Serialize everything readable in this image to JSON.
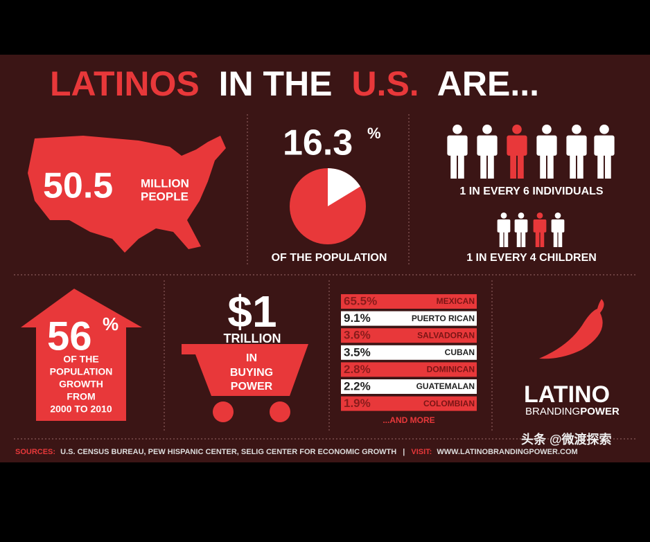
{
  "header": {
    "title_parts": [
      "LATINOS",
      "IN THE",
      "U.S.",
      "ARE..."
    ]
  },
  "population": {
    "number": "50.5",
    "unit_lines": [
      "MILLION",
      "PEOPLE"
    ]
  },
  "share": {
    "value": 16.3,
    "sign": "%",
    "caption": "OF THE POPULATION"
  },
  "ratios": [
    {
      "label": "1 IN EVERY 6 INDIVIDUALS"
    },
    {
      "label": "1 IN EVERY 4 CHILDREN"
    }
  ],
  "growth": {
    "number": "56",
    "sign": "%",
    "lines": [
      "OF THE",
      "POPULATION",
      "GROWTH",
      "FROM",
      "2000 TO 2010"
    ]
  },
  "buying_power": {
    "amount": "$1",
    "unit": "TRILLION",
    "lines": [
      "IN",
      "BUYING",
      "POWER"
    ]
  },
  "origins": {
    "rows": [
      [
        "65.5%",
        "MEXICAN"
      ],
      [
        "9.1%",
        "PUERTO RICAN"
      ],
      [
        "3.6%",
        "SALVADORAN"
      ],
      [
        "3.5%",
        "CUBAN"
      ],
      [
        "2.8%",
        "DOMINICAN"
      ],
      [
        "2.2%",
        "GUATEMALAN"
      ],
      [
        "1.9%",
        "COLOMBIAN"
      ]
    ],
    "more": "...AND MORE"
  },
  "brand": {
    "name": "LATINO",
    "tagline_parts": [
      "BRANDING",
      "POWER"
    ]
  },
  "footer": {
    "sources_label": "SOURCES:",
    "sources": "U.S. CENSUS BUREAU, PEW HISPANIC CENTER, SELIG CENTER FOR ECONOMIC GROWTH",
    "separator": "|",
    "visit_label": "VISIT:",
    "url": "WWW.LATINOBRANDINGPOWER.COM"
  },
  "watermark": "头条 @微渡探索"
}
